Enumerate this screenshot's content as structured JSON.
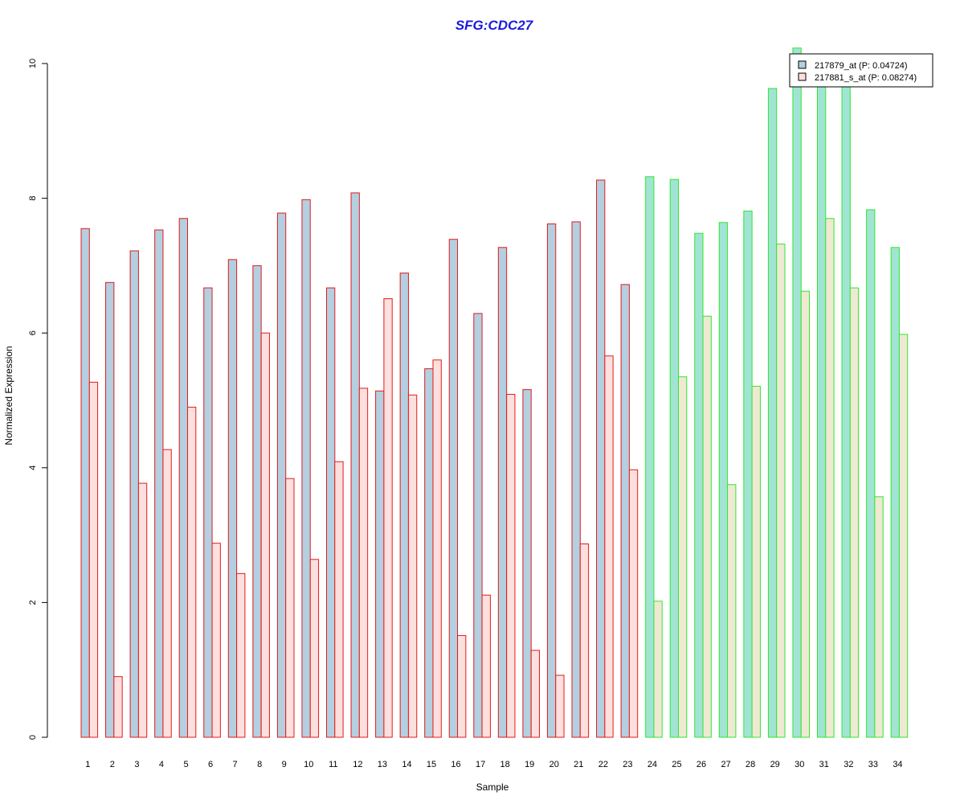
{
  "chart_data": {
    "type": "bar",
    "title": "SFG:CDC27",
    "xlabel": "Sample",
    "ylabel": "Normalized Expression",
    "ylim": [
      0,
      10
    ],
    "yticks": [
      "0",
      "2",
      "4",
      "6",
      "8",
      "10"
    ],
    "categories": [
      "1",
      "2",
      "3",
      "4",
      "5",
      "6",
      "7",
      "8",
      "9",
      "10",
      "11",
      "12",
      "13",
      "14",
      "15",
      "16",
      "17",
      "18",
      "19",
      "20",
      "21",
      "22",
      "23",
      "24",
      "25",
      "26",
      "27",
      "28",
      "29",
      "30",
      "31",
      "32",
      "33",
      "34"
    ],
    "series": [
      {
        "name": "217879_at (P: 0.04724)",
        "values": [
          7.55,
          6.75,
          7.22,
          7.53,
          7.7,
          6.67,
          7.09,
          7.0,
          7.78,
          7.98,
          6.67,
          8.08,
          5.14,
          6.89,
          5.47,
          7.39,
          6.29,
          7.27,
          5.16,
          7.62,
          7.65,
          8.27,
          6.72,
          8.32,
          8.28,
          7.48,
          7.64,
          7.81,
          9.63,
          10.23,
          9.84,
          9.72,
          7.83,
          7.27
        ]
      },
      {
        "name": "217881_s_at (P: 0.08274)",
        "values": [
          5.27,
          0.9,
          3.77,
          4.27,
          4.9,
          2.88,
          2.43,
          6.0,
          3.84,
          2.64,
          4.09,
          5.18,
          6.51,
          5.08,
          5.6,
          1.51,
          2.11,
          5.09,
          1.29,
          0.92,
          2.87,
          5.66,
          3.97,
          2.02,
          5.35,
          6.25,
          3.75,
          5.21,
          7.32,
          6.62,
          7.7,
          6.67,
          3.57,
          5.98
        ]
      }
    ],
    "groups": [
      {
        "samples": [
          1,
          23
        ],
        "border_color": "#e31a1c"
      },
      {
        "samples": [
          24,
          34
        ],
        "border_color": "#2ee82e"
      }
    ],
    "colors": {
      "group1_series1_fill": "#b3cfe0",
      "group1_series2_fill": "#fde0dd",
      "group2_series1_fill": "#a2e4d4",
      "group2_series2_fill": "#efe9d3",
      "legend_series1_fill": "#b3cfe0",
      "legend_series2_fill": "#fde0dd",
      "title_color": "#1a1adb"
    },
    "grid": false,
    "legend_position": "top-right"
  }
}
